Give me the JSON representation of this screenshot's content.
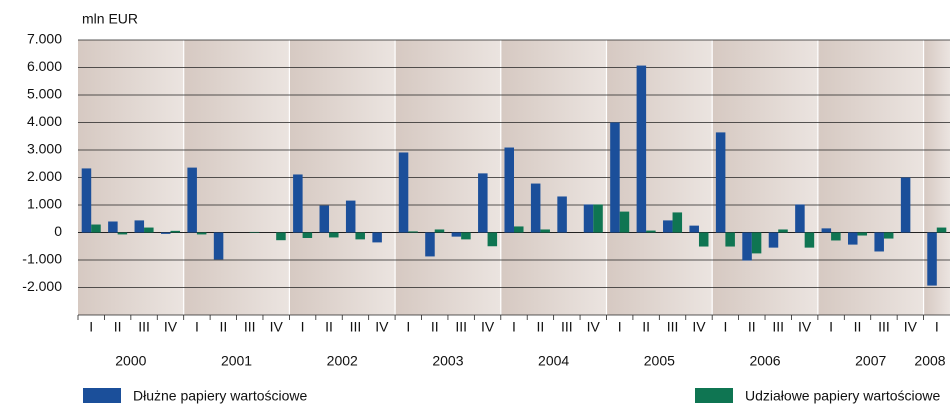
{
  "chart_data": {
    "type": "bar",
    "y_axis_label": "mln EUR",
    "categories": [
      "I",
      "II",
      "III",
      "IV",
      "I",
      "II",
      "III",
      "IV",
      "I",
      "II",
      "III",
      "IV",
      "I",
      "II",
      "III",
      "IV",
      "I",
      "II",
      "III",
      "IV",
      "I",
      "II",
      "III",
      "IV",
      "I",
      "II",
      "III",
      "IV",
      "I",
      "II",
      "III",
      "IV",
      "I"
    ],
    "years": [
      "2000",
      "2001",
      "2002",
      "2003",
      "2004",
      "2005",
      "2006",
      "2007",
      "2008"
    ],
    "series": [
      {
        "name": "Dłużne papiery wartościowe",
        "color": "#1b4f9a",
        "values": [
          2330,
          400,
          440,
          -50,
          2360,
          -980,
          0,
          0,
          2110,
          980,
          1160,
          -360,
          2910,
          -870,
          -150,
          2150,
          3090,
          1780,
          1310,
          1020,
          4000,
          6070,
          440,
          250,
          3640,
          -1020,
          -550,
          1020,
          150,
          -440,
          -690,
          2000,
          -1930
        ]
      },
      {
        "name": "Udziałowe papiery wartościowe",
        "color": "#0f7552",
        "values": [
          290,
          -70,
          180,
          60,
          -70,
          0,
          20,
          -280,
          -200,
          -180,
          -250,
          0,
          40,
          110,
          -250,
          -500,
          220,
          110,
          0,
          1020,
          760,
          70,
          730,
          -510,
          -510,
          -760,
          110,
          -550,
          -290,
          -110,
          -220,
          0,
          180
        ]
      }
    ],
    "ylim": [
      -3000,
      7000
    ],
    "yticks": [
      {
        "value": 7000,
        "label": "7.000"
      },
      {
        "value": 6000,
        "label": "6.000"
      },
      {
        "value": 5000,
        "label": "5.000"
      },
      {
        "value": 4000,
        "label": "4.000"
      },
      {
        "value": 3000,
        "label": "3.000"
      },
      {
        "value": 2000,
        "label": "2.000"
      },
      {
        "value": 1000,
        "label": "1.000"
      },
      0,
      {
        "value": -1000,
        "label": "-1.000"
      },
      {
        "value": -2000,
        "label": "-2.000"
      }
    ],
    "grid": true
  }
}
